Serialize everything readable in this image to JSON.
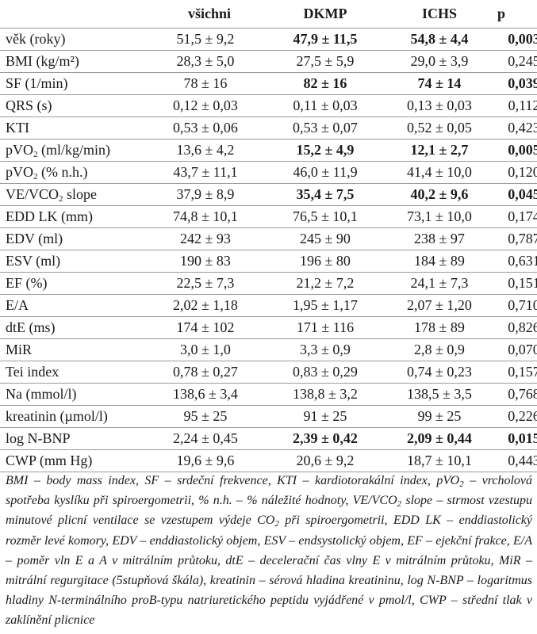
{
  "headers": {
    "label": "",
    "all": "všichni",
    "dkmp": "DKMP",
    "ichs": "ICHS",
    "p": "p"
  },
  "rows": [
    {
      "label": "věk (roky)",
      "all": "51,5 ± 9,2",
      "dkmp": "47,9 ± 11,5",
      "ichs": "54,8 ± 4,4",
      "p": "0,003",
      "bold": true
    },
    {
      "label": "BMI (kg/m²)",
      "all": "28,3 ± 5,0",
      "dkmp": "27,5 ± 5,9",
      "ichs": "29,0 ± 3,9",
      "p": "0,245",
      "bold": false
    },
    {
      "label": "SF (1/min)",
      "all": "78 ± 16",
      "dkmp": "82 ± 16",
      "ichs": "74 ± 14",
      "p": "0,039",
      "bold": true
    },
    {
      "label": "QRS (s)",
      "all": "0,12 ± 0,03",
      "dkmp": "0,11 ± 0,03",
      "ichs": "0,13 ± 0,03",
      "p": "0,112",
      "bold": false
    },
    {
      "label": "KTI",
      "all": "0,53 ± 0,06",
      "dkmp": "0,53 ± 0,07",
      "ichs": "0,52 ± 0,05",
      "p": "0,423",
      "bold": false
    },
    {
      "label_main": "pVO",
      "label_sub": "2",
      "label_rest": " (ml/kg/min)",
      "all": "13,6 ± 4,2",
      "dkmp": "15,2 ± 4,9",
      "ichs": "12,1 ± 2,7",
      "p": "0,005",
      "bold": true
    },
    {
      "label_main": "pVO",
      "label_sub": "2",
      "label_rest": " (% n.h.)",
      "all": "43,7 ± 11,1",
      "dkmp": "46,0 ± 11,9",
      "ichs": "41,4 ± 10,0",
      "p": "0,120",
      "bold": false
    },
    {
      "label_main": "VE/VCO",
      "label_sub": "2",
      "label_rest": " slope",
      "all": "37,9 ± 8,9",
      "dkmp": "35,4 ± 7,5",
      "ichs": "40,2 ± 9,6",
      "p": "0,045",
      "bold": true
    },
    {
      "label": "EDD LK (mm)",
      "all": "74,8 ± 10,1",
      "dkmp": "76,5 ± 10,1",
      "ichs": "73,1 ± 10,0",
      "p": "0,174",
      "bold": false
    },
    {
      "label": "EDV (ml)",
      "all": "242 ± 93",
      "dkmp": "245 ± 90",
      "ichs": "238 ± 97",
      "p": "0,787",
      "bold": false
    },
    {
      "label": "ESV (ml)",
      "all": "190 ± 83",
      "dkmp": "196 ± 80",
      "ichs": "184 ± 89",
      "p": "0,631",
      "bold": false
    },
    {
      "label": "EF (%)",
      "all": "22,5 ± 7,3",
      "dkmp": "21,2 ± 7,2",
      "ichs": "24,1 ± 7,3",
      "p": "0,151",
      "bold": false
    },
    {
      "label": "E/A",
      "all": "2,02 ± 1,18",
      "dkmp": "1,95 ± 1,17",
      "ichs": "2,07 ± 1,20",
      "p": "0,710",
      "bold": false
    },
    {
      "label": "dtE (ms)",
      "all": "174 ± 102",
      "dkmp": "171 ± 116",
      "ichs": "178 ± 89",
      "p": "0,826",
      "bold": false
    },
    {
      "label": "MiR",
      "all": "3,0 ± 1,0",
      "dkmp": "3,3 ± 0,9",
      "ichs": "2,8 ± 0,9",
      "p": "0,070",
      "bold": false
    },
    {
      "label": "Tei index",
      "all": "0,78 ± 0,27",
      "dkmp": "0,83 ± 0,29",
      "ichs": "0,74 ± 0,23",
      "p": "0,157",
      "bold": false
    },
    {
      "label": "Na (mmol/l)",
      "all": "138,6 ± 3,4",
      "dkmp": "138,8 ± 3,2",
      "ichs": "138,5 ± 3,5",
      "p": "0,768",
      "bold": false
    },
    {
      "label": "kreatinin (µmol/l)",
      "all": "95 ± 25",
      "dkmp": "91 ± 25",
      "ichs": "99 ± 25",
      "p": "0,226",
      "bold": false
    },
    {
      "label": "log N-BNP",
      "all": "2,24 ± 0,45",
      "dkmp": "2,39 ± 0,42",
      "ichs": "2,09 ± 0,44",
      "p": "0,015",
      "bold": true
    },
    {
      "label": "CWP (mm Hg)",
      "all": "19,6 ± 9,6",
      "dkmp": "20,6 ± 9,2",
      "ichs": "18,7 ± 10,1",
      "p": "0,443",
      "bold": false
    }
  ],
  "footnote": {
    "p1": "BMI – body mass index, SF – srdeční frekvence, KTI – kardiotorakální index, pVO",
    "s1": "2",
    "p2": " – vrcholová spotřeba kyslíku při spiroergometrii, % n.h. – % náležité hodnoty, VE/VCO",
    "s2": "2",
    "p3": " slope – strmost vzestupu minutové plicní ventilace se vzestupem výdeje CO",
    "s3": "2",
    "p4": " při spiroergometrii, EDD LK – enddiastolický rozměr levé komory, EDV – enddiastolický objem, ESV – endsystolický objem, EF – ejekční frakce, E/A – poměr vln E a A v mitrálním průtoku, dtE – decelerační čas vlny E v mitrálním průtoku, MiR – mitrální regurgitace (5stupňová škála), kreatinin – sérová hladina kreatininu, log N-BNP – logaritmus hladiny N-terminálního proB-typu natriuretického peptidu vyjádřené v pmol/l, CWP – střední tlak v zaklínění plicnice"
  }
}
